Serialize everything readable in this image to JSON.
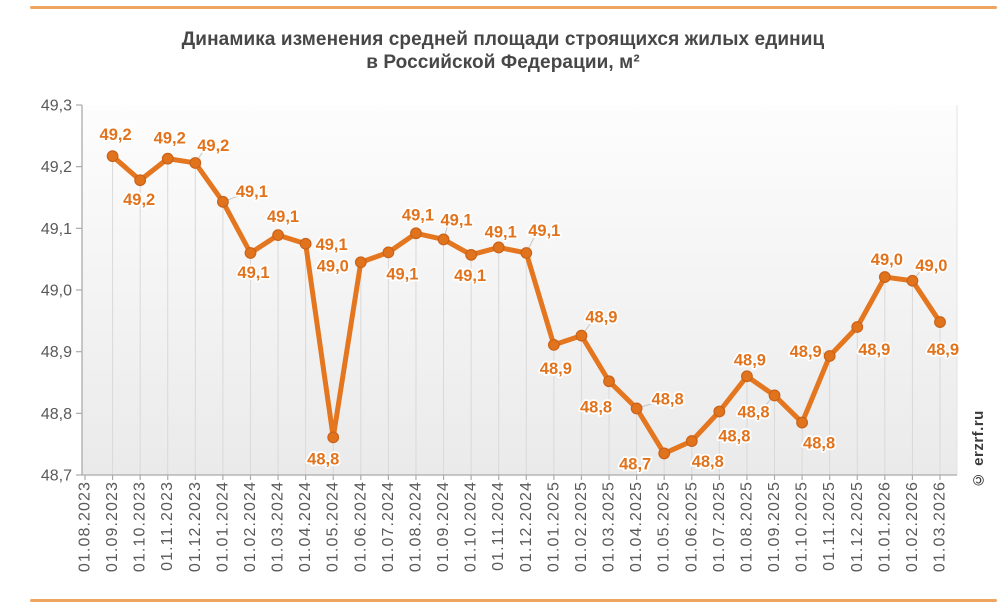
{
  "page": {
    "watermark": "© erzrf.ru"
  },
  "chart_data": {
    "type": "line",
    "title": "Динамика изменения средней площади строящихся жилых единиц в Российской Федерации, м²",
    "title_lines": [
      "Динамика изменения средней площади строящихся жилых единиц",
      "в Российской Федерации, м²"
    ],
    "xlabel": "",
    "ylabel": "",
    "ylim": [
      48.7,
      49.3
    ],
    "grid": "vertical-drop-lines-only",
    "legend_position": "none",
    "decimal_separator": ",",
    "yticks": [
      {
        "value": 49.3,
        "label": "49,3"
      },
      {
        "value": 49.2,
        "label": "49,2"
      },
      {
        "value": 49.1,
        "label": "49,1"
      },
      {
        "value": 49.0,
        "label": "49,0"
      },
      {
        "value": 48.9,
        "label": "48,9"
      },
      {
        "value": 48.8,
        "label": "48,8"
      },
      {
        "value": 48.7,
        "label": "48,7"
      }
    ],
    "categories": [
      "01.08.2023",
      "01.09.2023",
      "01.10.2023",
      "01.11.2023",
      "01.12.2023",
      "01.01.2024",
      "01.02.2024",
      "01.03.2024",
      "01.04.2024",
      "01.05.2024",
      "01.06.2024",
      "01.07.2024",
      "01.08.2024",
      "01.09.2024",
      "01.10.2024",
      "01.11.2024",
      "01.12.2024",
      "01.01.2025",
      "01.02.2025",
      "01.03.2025",
      "01.04.2025",
      "01.05.2025",
      "01.06.2025",
      "01.07.2025",
      "01.08.2025",
      "01.09.2025",
      "01.10.2025",
      "01.11.2025",
      "01.12.2025",
      "01.01.2026",
      "01.02.2026",
      "01.03.2026"
    ],
    "series": [
      {
        "name": "Средняя площадь строящихся жилых единиц, м²",
        "points": [
          {
            "ci": 1,
            "date": "01.09.2023",
            "value": 49.217,
            "label": "49,2",
            "dx": 3,
            "dy": -16,
            "leader": false
          },
          {
            "ci": 2,
            "date": "01.10.2023",
            "value": 49.178,
            "label": "49,2",
            "dx": -1,
            "dy": 25,
            "leader": false
          },
          {
            "ci": 3,
            "date": "01.11.2023",
            "value": 49.213,
            "label": "49,2",
            "dx": 2,
            "dy": -15,
            "leader": false
          },
          {
            "ci": 4,
            "date": "01.12.2023",
            "value": 49.206,
            "label": "49,2",
            "dx": 18,
            "dy": -12,
            "leader": true
          },
          {
            "ci": 5,
            "date": "01.01.2024",
            "value": 49.143,
            "label": "49,1",
            "dx": 29,
            "dy": -5,
            "leader": true
          },
          {
            "ci": 6,
            "date": "01.02.2024",
            "value": 49.06,
            "label": "49,1",
            "dx": 3,
            "dy": 25,
            "leader": false
          },
          {
            "ci": 7,
            "date": "01.03.2024",
            "value": 49.089,
            "label": "49,1",
            "dx": 5,
            "dy": -13,
            "leader": false
          },
          {
            "ci": 8,
            "date": "01.04.2024",
            "value": 49.075,
            "label": "49,1",
            "dx": 26,
            "dy": 6,
            "leader": false
          },
          {
            "ci": 9,
            "date": "01.05.2024",
            "value": 48.761,
            "label": "48,8",
            "dx": -10,
            "dy": 27,
            "leader": false
          },
          {
            "ci": 10,
            "date": "01.06.2024",
            "value": 49.045,
            "label": "49,0",
            "dx": -28,
            "dy": 9,
            "leader": false
          },
          {
            "ci": 11,
            "date": "01.07.2024",
            "value": 49.061,
            "label": "49,1",
            "dx": 14,
            "dy": 27,
            "leader": false
          },
          {
            "ci": 12,
            "date": "01.08.2024",
            "value": 49.092,
            "label": "49,1",
            "dx": 2,
            "dy": -13,
            "leader": false
          },
          {
            "ci": 13,
            "date": "01.09.2024",
            "value": 49.082,
            "label": "49,1",
            "dx": 13,
            "dy": -14,
            "leader": true
          },
          {
            "ci": 14,
            "date": "01.10.2024",
            "value": 49.057,
            "label": "49,1",
            "dx": -1,
            "dy": 26,
            "leader": false
          },
          {
            "ci": 15,
            "date": "01.11.2024",
            "value": 49.069,
            "label": "49,1",
            "dx": 2,
            "dy": -10,
            "leader": false
          },
          {
            "ci": 16,
            "date": "01.12.2024",
            "value": 49.06,
            "label": "49,1",
            "dx": 18,
            "dy": -17,
            "leader": true
          },
          {
            "ci": 17,
            "date": "01.01.2025",
            "value": 48.911,
            "label": "48,9",
            "dx": 2,
            "dy": 29,
            "leader": false
          },
          {
            "ci": 18,
            "date": "01.02.2025",
            "value": 48.926,
            "label": "48,9",
            "dx": 20,
            "dy": -13,
            "leader": true
          },
          {
            "ci": 19,
            "date": "01.03.2025",
            "value": 48.852,
            "label": "48,8",
            "dx": -13,
            "dy": 31,
            "leader": false
          },
          {
            "ci": 20,
            "date": "01.04.2025",
            "value": 48.808,
            "label": "48,8",
            "dx": 31,
            "dy": -4,
            "leader": true
          },
          {
            "ci": 21,
            "date": "01.05.2025",
            "value": 48.735,
            "label": "48,7",
            "dx": -29,
            "dy": 16,
            "leader": false
          },
          {
            "ci": 22,
            "date": "01.06.2025",
            "value": 48.755,
            "label": "48,8",
            "dx": 16,
            "dy": 26,
            "leader": false
          },
          {
            "ci": 23,
            "date": "01.07.2025",
            "value": 48.803,
            "label": "48,8",
            "dx": 15,
            "dy": 30,
            "leader": false
          },
          {
            "ci": 24,
            "date": "01.08.2025",
            "value": 48.86,
            "label": "48,9",
            "dx": 3,
            "dy": -11,
            "leader": false
          },
          {
            "ci": 25,
            "date": "01.09.2025",
            "value": 48.829,
            "label": "48,8",
            "dx": -21,
            "dy": 22,
            "leader": true
          },
          {
            "ci": 26,
            "date": "01.10.2025",
            "value": 48.785,
            "label": "48,8",
            "dx": 17,
            "dy": 26,
            "leader": false
          },
          {
            "ci": 27,
            "date": "01.11.2025",
            "value": 48.893,
            "label": "48,9",
            "dx": -24,
            "dy": 1,
            "leader": true
          },
          {
            "ci": 28,
            "date": "01.12.2025",
            "value": 48.94,
            "label": "48,9",
            "dx": 17,
            "dy": 28,
            "leader": false
          },
          {
            "ci": 29,
            "date": "01.01.2026",
            "value": 49.021,
            "label": "49,0",
            "dx": 2,
            "dy": -12,
            "leader": false
          },
          {
            "ci": 30,
            "date": "01.02.2026",
            "value": 49.015,
            "label": "49,0",
            "dx": 19,
            "dy": -10,
            "leader": true
          },
          {
            "ci": 31,
            "date": "01.03.2026",
            "value": 48.948,
            "label": "48,9",
            "dx": 3,
            "dy": 33,
            "leader": false
          }
        ]
      }
    ],
    "colors": {
      "line": "#e4761f",
      "marker_fill": "#e2731d",
      "marker_stroke": "#c9621a",
      "data_label": "#e2731d",
      "accent_rule": "#efa45f",
      "plot_bg_top": "#fdfdfd",
      "plot_bg_bottom": "#eaeaea",
      "drop_line": "#d9d9d9",
      "axis": "#ababab",
      "tick_label": "#595959",
      "title": "#474747",
      "leader": "#c6c6c6",
      "plot_right_border": "#e3e3e3"
    }
  }
}
